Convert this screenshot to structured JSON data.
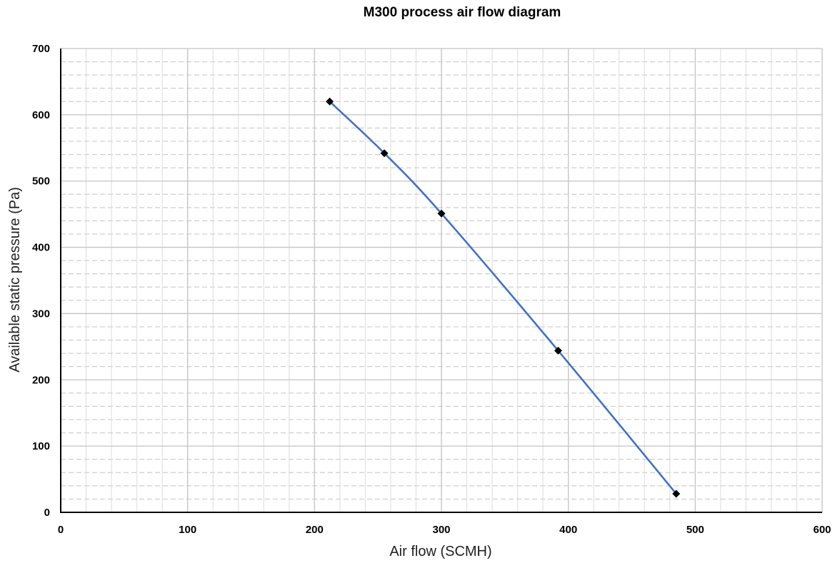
{
  "chart_data": {
    "type": "scatter",
    "title": "M300 process air flow diagram",
    "xlabel": "Air flow (SCMH)",
    "ylabel": "Available static pressure (Pa)",
    "xlim": [
      0,
      600
    ],
    "ylim": [
      0,
      700
    ],
    "x_major_step": 100,
    "x_minor_step": 20,
    "y_major_step": 100,
    "y_minor_step": 20,
    "x_ticks": [
      "0",
      "100",
      "200",
      "300",
      "400",
      "500",
      "600"
    ],
    "y_ticks": [
      "0",
      "100",
      "200",
      "300",
      "400",
      "500",
      "600",
      "700"
    ],
    "grid": true,
    "smooth_line": true,
    "series": [
      {
        "line_color": "#4472c4",
        "marker_color": "#000000",
        "marker": "diamond",
        "x": [
          212,
          255,
          300,
          392,
          485
        ],
        "y": [
          620,
          542,
          451,
          244,
          28
        ]
      }
    ]
  }
}
